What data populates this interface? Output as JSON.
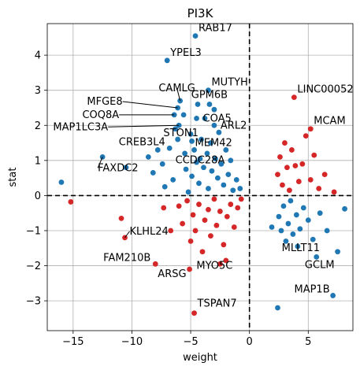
{
  "chart_data": {
    "type": "scatter",
    "title": "PI3K",
    "xlabel": "weight",
    "ylabel": "stat",
    "xlim": [
      -17.2,
      8.8
    ],
    "ylim": [
      -3.85,
      4.9
    ],
    "xticks": [
      -15,
      -10,
      -5,
      0,
      5
    ],
    "yticks": [
      -3,
      -2,
      -1,
      0,
      1,
      2,
      3,
      4
    ],
    "grid": true,
    "reference_lines": {
      "x": 0,
      "y": 0,
      "style": "dashed"
    },
    "colors": {
      "blue": "#1f77b4",
      "red": "#d62728"
    },
    "labeled_points": [
      {
        "label": "RAB17",
        "x": -4.6,
        "y": 4.55,
        "color": "blue"
      },
      {
        "label": "YPEL3",
        "x": -7.0,
        "y": 3.85,
        "color": "blue"
      },
      {
        "label": "MUTYH",
        "x": -3.5,
        "y": 3.0,
        "color": "blue"
      },
      {
        "label": "CAMLG",
        "x": -5.9,
        "y": 2.7,
        "color": "blue"
      },
      {
        "label": "GPM6B",
        "x": -3.4,
        "y": 2.6,
        "color": "blue"
      },
      {
        "label": "MFGE8",
        "x": -6.1,
        "y": 2.5,
        "color": "blue"
      },
      {
        "label": "COA5",
        "x": -4.5,
        "y": 2.2,
        "color": "blue"
      },
      {
        "label": "COQ8A",
        "x": -6.4,
        "y": 2.3,
        "color": "blue"
      },
      {
        "label": "ARL2",
        "x": -3.0,
        "y": 2.0,
        "color": "blue"
      },
      {
        "label": "MAP1LC3A",
        "x": -6.0,
        "y": 2.0,
        "color": "blue"
      },
      {
        "label": "STON1",
        "x": -6.1,
        "y": 1.6,
        "color": "blue"
      },
      {
        "label": "MEM42",
        "x": -4.9,
        "y": 1.55,
        "color": "blue"
      },
      {
        "label": "CREB3L4",
        "x": -7.8,
        "y": 1.3,
        "color": "blue"
      },
      {
        "label": "CCDC28A",
        "x": -4.2,
        "y": 1.05,
        "color": "blue"
      },
      {
        "label": "FAXDC2",
        "x": -12.5,
        "y": 1.1,
        "color": "blue"
      },
      {
        "label": "LINC00052",
        "x": 3.8,
        "y": 2.8,
        "color": "red"
      },
      {
        "label": "MCAM",
        "x": 5.2,
        "y": 1.9,
        "color": "red"
      },
      {
        "label": "KLHL24",
        "x": -10.6,
        "y": -1.2,
        "color": "red"
      },
      {
        "label": "FAM210B",
        "x": -8.0,
        "y": -1.95,
        "color": "red"
      },
      {
        "label": "ARSG",
        "x": -5.1,
        "y": -2.1,
        "color": "red"
      },
      {
        "label": "MYO5C",
        "x": -2.5,
        "y": -1.95,
        "color": "red"
      },
      {
        "label": "MLLT11",
        "x": 4.1,
        "y": -1.45,
        "color": "blue"
      },
      {
        "label": "GCLM",
        "x": 5.7,
        "y": -1.75,
        "color": "blue"
      },
      {
        "label": "MAP1B",
        "x": 7.1,
        "y": -2.85,
        "color": "blue"
      },
      {
        "label": "TSPAN7",
        "x": -4.7,
        "y": -3.35,
        "color": "red"
      }
    ],
    "other_points": [
      {
        "x": -16.0,
        "y": 0.38,
        "color": "blue"
      },
      {
        "x": -15.2,
        "y": -0.18,
        "color": "red"
      },
      {
        "x": -10.5,
        "y": 0.8,
        "color": "blue"
      },
      {
        "x": -10.9,
        "y": -0.65,
        "color": "red"
      },
      {
        "x": -8.6,
        "y": 1.1,
        "color": "blue"
      },
      {
        "x": -8.2,
        "y": 0.65,
        "color": "blue"
      },
      {
        "x": -7.4,
        "y": 0.9,
        "color": "blue"
      },
      {
        "x": -7.2,
        "y": 0.25,
        "color": "blue"
      },
      {
        "x": -6.8,
        "y": 1.35,
        "color": "blue"
      },
      {
        "x": -6.5,
        "y": 0.45,
        "color": "blue"
      },
      {
        "x": -6.3,
        "y": 1.9,
        "color": "blue"
      },
      {
        "x": -5.6,
        "y": 2.3,
        "color": "blue"
      },
      {
        "x": -5.5,
        "y": 1.2,
        "color": "blue"
      },
      {
        "x": -5.4,
        "y": 0.75,
        "color": "blue"
      },
      {
        "x": -5.2,
        "y": 0.1,
        "color": "blue"
      },
      {
        "x": -5.0,
        "y": 1.75,
        "color": "blue"
      },
      {
        "x": -4.9,
        "y": 0.55,
        "color": "blue"
      },
      {
        "x": -4.7,
        "y": 1.3,
        "color": "blue"
      },
      {
        "x": -4.5,
        "y": 0.95,
        "color": "blue"
      },
      {
        "x": -4.4,
        "y": 2.6,
        "color": "blue"
      },
      {
        "x": -4.3,
        "y": 0.35,
        "color": "blue"
      },
      {
        "x": -4.1,
        "y": 1.6,
        "color": "blue"
      },
      {
        "x": -3.9,
        "y": 0.8,
        "color": "blue"
      },
      {
        "x": -3.8,
        "y": 2.2,
        "color": "blue"
      },
      {
        "x": -3.6,
        "y": 1.2,
        "color": "blue"
      },
      {
        "x": -3.5,
        "y": 0.2,
        "color": "blue"
      },
      {
        "x": -3.3,
        "y": 1.5,
        "color": "blue"
      },
      {
        "x": -3.2,
        "y": 0.7,
        "color": "blue"
      },
      {
        "x": -3.0,
        "y": 2.45,
        "color": "blue"
      },
      {
        "x": -2.9,
        "y": 1.05,
        "color": "blue"
      },
      {
        "x": -2.7,
        "y": 0.5,
        "color": "blue"
      },
      {
        "x": -2.6,
        "y": 1.8,
        "color": "blue"
      },
      {
        "x": -2.4,
        "y": 0.9,
        "color": "blue"
      },
      {
        "x": -2.2,
        "y": 0.3,
        "color": "blue"
      },
      {
        "x": -2.0,
        "y": 1.3,
        "color": "blue"
      },
      {
        "x": -1.8,
        "y": 0.6,
        "color": "blue"
      },
      {
        "x": -1.6,
        "y": 1.0,
        "color": "blue"
      },
      {
        "x": -1.4,
        "y": 0.15,
        "color": "blue"
      },
      {
        "x": -1.1,
        "y": 0.45,
        "color": "blue"
      },
      {
        "x": -0.8,
        "y": 0.2,
        "color": "blue"
      },
      {
        "x": -6.0,
        "y": -0.3,
        "color": "red"
      },
      {
        "x": -5.7,
        "y": -0.8,
        "color": "red"
      },
      {
        "x": -5.3,
        "y": -0.15,
        "color": "red"
      },
      {
        "x": -5.0,
        "y": -1.3,
        "color": "red"
      },
      {
        "x": -4.8,
        "y": -0.55,
        "color": "red"
      },
      {
        "x": -4.6,
        "y": -1.0,
        "color": "red"
      },
      {
        "x": -4.3,
        "y": -0.25,
        "color": "red"
      },
      {
        "x": -4.0,
        "y": -1.6,
        "color": "red"
      },
      {
        "x": -3.8,
        "y": -0.7,
        "color": "red"
      },
      {
        "x": -3.5,
        "y": -0.4,
        "color": "red"
      },
      {
        "x": -3.3,
        "y": -1.15,
        "color": "red"
      },
      {
        "x": -3.0,
        "y": -0.1,
        "color": "red"
      },
      {
        "x": -2.8,
        "y": -0.85,
        "color": "red"
      },
      {
        "x": -2.5,
        "y": -0.45,
        "color": "red"
      },
      {
        "x": -2.2,
        "y": -1.4,
        "color": "red"
      },
      {
        "x": -1.9,
        "y": -0.6,
        "color": "red"
      },
      {
        "x": -1.6,
        "y": -0.25,
        "color": "red"
      },
      {
        "x": -1.3,
        "y": -0.9,
        "color": "red"
      },
      {
        "x": -1.0,
        "y": -0.35,
        "color": "red"
      },
      {
        "x": -0.7,
        "y": -0.1,
        "color": "red"
      },
      {
        "x": -6.7,
        "y": -1.0,
        "color": "red"
      },
      {
        "x": -7.3,
        "y": -0.35,
        "color": "red"
      },
      {
        "x": -2.0,
        "y": -1.85,
        "color": "red"
      },
      {
        "x": 2.4,
        "y": 0.6,
        "color": "red"
      },
      {
        "x": 2.6,
        "y": 1.1,
        "color": "red"
      },
      {
        "x": 2.8,
        "y": 0.3,
        "color": "red"
      },
      {
        "x": 3.0,
        "y": 1.5,
        "color": "red"
      },
      {
        "x": 3.2,
        "y": 0.8,
        "color": "red"
      },
      {
        "x": 3.4,
        "y": 0.15,
        "color": "red"
      },
      {
        "x": 3.6,
        "y": 1.3,
        "color": "red"
      },
      {
        "x": 3.9,
        "y": 0.85,
        "color": "red"
      },
      {
        "x": 4.2,
        "y": 0.4,
        "color": "red"
      },
      {
        "x": 4.5,
        "y": 0.9,
        "color": "red"
      },
      {
        "x": 4.8,
        "y": 1.7,
        "color": "red"
      },
      {
        "x": 5.2,
        "y": 0.45,
        "color": "red"
      },
      {
        "x": 5.5,
        "y": 1.15,
        "color": "red"
      },
      {
        "x": 5.9,
        "y": 0.2,
        "color": "red"
      },
      {
        "x": 6.4,
        "y": 0.6,
        "color": "red"
      },
      {
        "x": 7.2,
        "y": 0.1,
        "color": "red"
      },
      {
        "x": 2.5,
        "y": -0.6,
        "color": "blue"
      },
      {
        "x": 2.7,
        "y": -1.0,
        "color": "blue"
      },
      {
        "x": 2.9,
        "y": -0.3,
        "color": "blue"
      },
      {
        "x": 3.1,
        "y": -1.3,
        "color": "blue"
      },
      {
        "x": 3.3,
        "y": -0.8,
        "color": "blue"
      },
      {
        "x": 3.5,
        "y": -0.15,
        "color": "blue"
      },
      {
        "x": 3.7,
        "y": -1.1,
        "color": "blue"
      },
      {
        "x": 4.0,
        "y": -0.55,
        "color": "blue"
      },
      {
        "x": 4.3,
        "y": -0.95,
        "color": "blue"
      },
      {
        "x": 4.6,
        "y": -0.35,
        "color": "blue"
      },
      {
        "x": 5.0,
        "y": -0.7,
        "color": "blue"
      },
      {
        "x": 5.4,
        "y": -1.25,
        "color": "blue"
      },
      {
        "x": 6.0,
        "y": -0.5,
        "color": "blue"
      },
      {
        "x": 6.6,
        "y": -1.0,
        "color": "blue"
      },
      {
        "x": 7.5,
        "y": -1.6,
        "color": "blue"
      },
      {
        "x": 8.1,
        "y": -0.38,
        "color": "blue"
      },
      {
        "x": 2.4,
        "y": -3.2,
        "color": "blue"
      },
      {
        "x": 1.9,
        "y": -0.9,
        "color": "blue"
      }
    ]
  }
}
